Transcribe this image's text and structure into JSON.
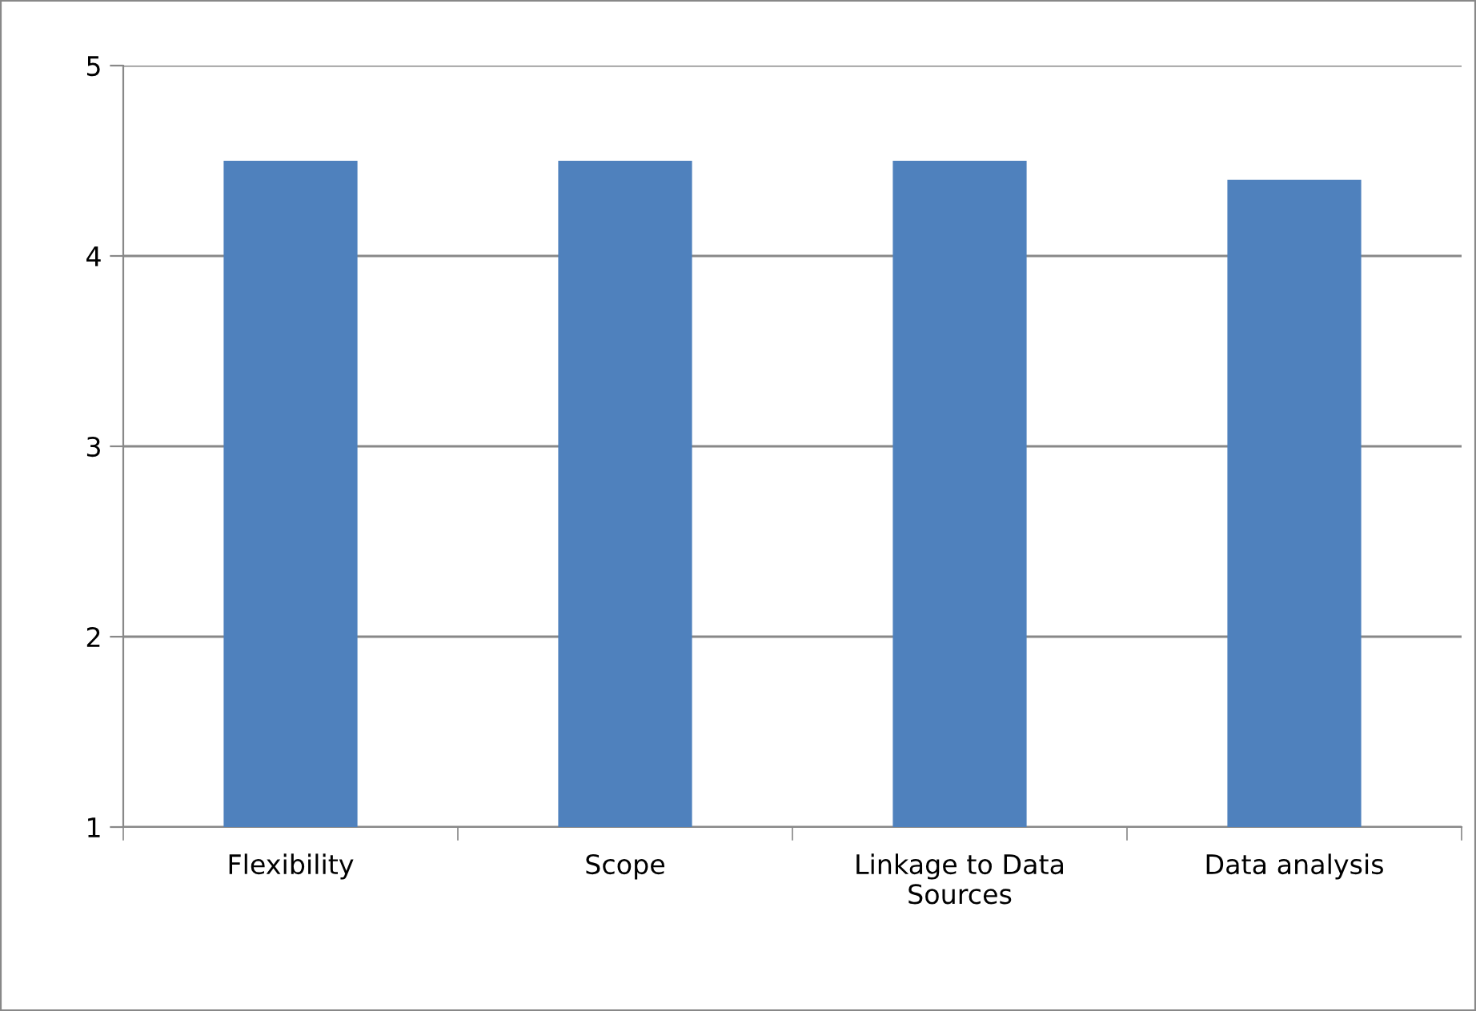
{
  "chart_data": {
    "type": "bar",
    "categories": [
      "Flexibility",
      "Scope",
      "Linkage to Data Sources",
      "Data analysis"
    ],
    "values": [
      4.5,
      4.5,
      4.5,
      4.4
    ],
    "color": "#4f81bd",
    "ylim": [
      1,
      5
    ],
    "yticks": [
      1,
      2,
      3,
      4,
      5
    ],
    "grid": "y",
    "legend": false
  }
}
